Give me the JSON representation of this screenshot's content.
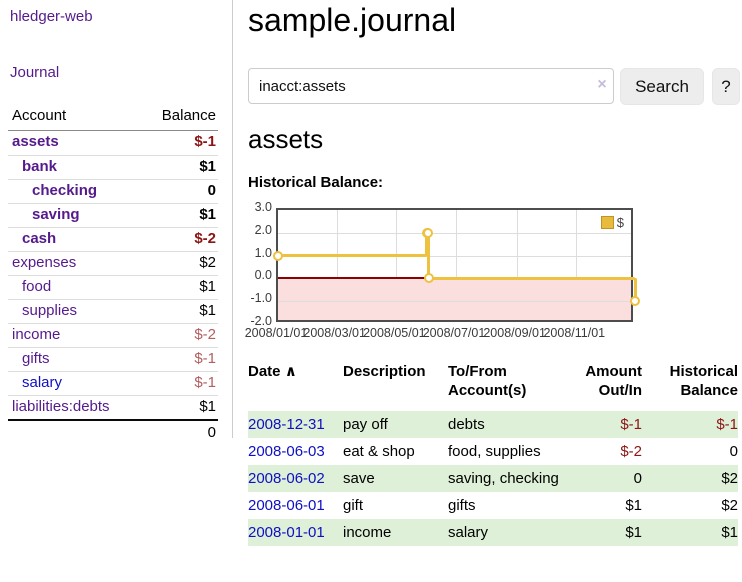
{
  "palette": {
    "link_purple": "#551a8b",
    "link_blue": "#0f0fc4",
    "negative_strong": "#8b1515",
    "negative_soft": "#b25e5e",
    "row_stripe_green": "#dff0d8",
    "series_gold": "#edc240",
    "zero_line_red": "#8b0000",
    "negative_region_pink": "#fbdede"
  },
  "app": {
    "brand": "hledger-web",
    "nav_journal": "Journal"
  },
  "sidebar": {
    "accounts_header": {
      "account": "Account",
      "balance": "Balance"
    },
    "accounts": [
      {
        "name": "assets",
        "balance": "$-1",
        "level": 1,
        "bold": true,
        "name_color": "purple",
        "balance_color": "neg-strong"
      },
      {
        "name": "bank",
        "balance": "$1",
        "level": 2,
        "bold": true,
        "name_color": "purple",
        "balance_color": "black"
      },
      {
        "name": "checking",
        "balance": "0",
        "level": 3,
        "bold": true,
        "name_color": "purple",
        "balance_color": "black"
      },
      {
        "name": "saving",
        "balance": "$1",
        "level": 3,
        "bold": true,
        "name_color": "purple",
        "balance_color": "black"
      },
      {
        "name": "cash",
        "balance": "$-2",
        "level": 2,
        "bold": true,
        "name_color": "purple",
        "balance_color": "neg-strong"
      },
      {
        "name": "expenses",
        "balance": "$2",
        "level": 1,
        "bold": false,
        "name_color": "purple",
        "balance_color": "black"
      },
      {
        "name": "food",
        "balance": "$1",
        "level": 2,
        "bold": false,
        "name_color": "purple",
        "balance_color": "black"
      },
      {
        "name": "supplies",
        "balance": "$1",
        "level": 2,
        "bold": false,
        "name_color": "purple",
        "balance_color": "black"
      },
      {
        "name": "income",
        "balance": "$-2",
        "level": 1,
        "bold": false,
        "name_color": "purple",
        "balance_color": "neg-soft"
      },
      {
        "name": "gifts",
        "balance": "$-1",
        "level": 2,
        "bold": false,
        "name_color": "purple",
        "balance_color": "neg-soft"
      },
      {
        "name": "salary",
        "balance": "$-1",
        "level": 2,
        "bold": false,
        "name_color": "blue",
        "balance_color": "neg-soft"
      },
      {
        "name": "liabilities:debts",
        "balance": "$1",
        "level": 1,
        "bold": false,
        "name_color": "purple",
        "balance_color": "black"
      }
    ],
    "total": "0"
  },
  "main": {
    "title": "sample.journal",
    "search": {
      "value": "inacct:assets",
      "clear_icon": "×",
      "button_label": "Search",
      "help_label": "?"
    },
    "account_heading": "assets",
    "chart_label": "Historical Balance:"
  },
  "chart_data": {
    "type": "line",
    "title": "Historical Balance",
    "step": true,
    "series": [
      {
        "name": "$",
        "x": [
          "2008-01-01",
          "2008-06-01",
          "2008-06-02",
          "2008-06-03",
          "2008-12-31"
        ],
        "y": [
          1,
          2,
          2,
          0,
          -1
        ]
      }
    ],
    "xlim": [
      "2008-01-01",
      "2008-12-31"
    ],
    "ylim": [
      -2,
      3
    ],
    "yticks": [
      "3.0",
      "2.0",
      "1.0",
      "0.0",
      "-1.0",
      "-2.0"
    ],
    "xticks": [
      "2008/01/01",
      "2008/03/01",
      "2008/05/01",
      "2008/07/01",
      "2008/09/01",
      "2008/11/01"
    ],
    "grid": true,
    "legend_position": "top-right",
    "legend_label": "$",
    "zero_line": 0,
    "shaded_region": "below-zero"
  },
  "register": {
    "headers": {
      "date": "Date",
      "sort_caret": "∧",
      "description": "Description",
      "accounts": "To/From Account(s)",
      "amount": "Amount Out/In",
      "balance": "Historical Balance"
    },
    "rows": [
      {
        "date": "2008-12-31",
        "description": "pay off",
        "accounts": "debts",
        "amount": "$-1",
        "amount_neg": true,
        "balance": "$-1",
        "balance_neg": true,
        "stripe": true
      },
      {
        "date": "2008-06-03",
        "description": "eat & shop",
        "accounts": "food, supplies",
        "amount": "$-2",
        "amount_neg": true,
        "balance": "0",
        "balance_neg": false,
        "stripe": false
      },
      {
        "date": "2008-06-02",
        "description": "save",
        "accounts": "saving, checking",
        "amount": "0",
        "amount_neg": false,
        "balance": "$2",
        "balance_neg": false,
        "stripe": true
      },
      {
        "date": "2008-06-01",
        "description": "gift",
        "accounts": "gifts",
        "amount": "$1",
        "amount_neg": false,
        "balance": "$2",
        "balance_neg": false,
        "stripe": false
      },
      {
        "date": "2008-01-01",
        "description": "income",
        "accounts": "salary",
        "amount": "$1",
        "amount_neg": false,
        "balance": "$1",
        "balance_neg": false,
        "stripe": true
      }
    ]
  }
}
